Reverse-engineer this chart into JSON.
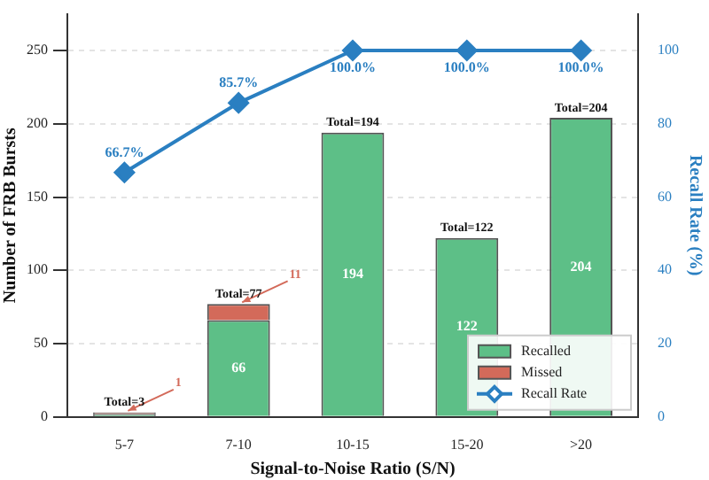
{
  "chart_data": {
    "type": "bar",
    "stacked": true,
    "xlabel": "Signal-to-Noise Ratio (S/N)",
    "ylabel": "Number of FRB Bursts",
    "y2label": "Recall Rate (%)",
    "categories": [
      "5-7",
      "7-10",
      "10-15",
      "15-20",
      ">20"
    ],
    "series": [
      {
        "name": "Recalled",
        "color": "#5dbf87",
        "values": [
          2,
          66,
          194,
          122,
          204
        ],
        "value_labels": [
          null,
          "66",
          "194",
          "122",
          "204"
        ]
      },
      {
        "name": "Missed",
        "color": "#d36a5a",
        "values": [
          1,
          11,
          0,
          0,
          0
        ],
        "value_labels": [
          "1",
          "11",
          null,
          null,
          null
        ]
      },
      {
        "name": "Recall Rate",
        "type": "line",
        "axis": "y2",
        "color": "#2a7fc1",
        "marker": "diamond",
        "values": [
          66.7,
          85.7,
          100,
          100,
          100
        ],
        "value_labels": [
          "66.7%",
          "85.7%",
          "100.0%",
          "100.0%",
          "100.0%"
        ]
      }
    ],
    "totals": [
      "Total=3",
      "Total=77",
      "Total=194",
      "Total=122",
      "Total=204"
    ],
    "ylim": [
      0,
      275
    ],
    "yticks": [
      0,
      50,
      100,
      150,
      200,
      250
    ],
    "y2lim": [
      0,
      110
    ],
    "y2ticks": [
      0,
      20,
      40,
      60,
      80,
      100
    ],
    "grid": "y",
    "legend": "bottom right"
  }
}
